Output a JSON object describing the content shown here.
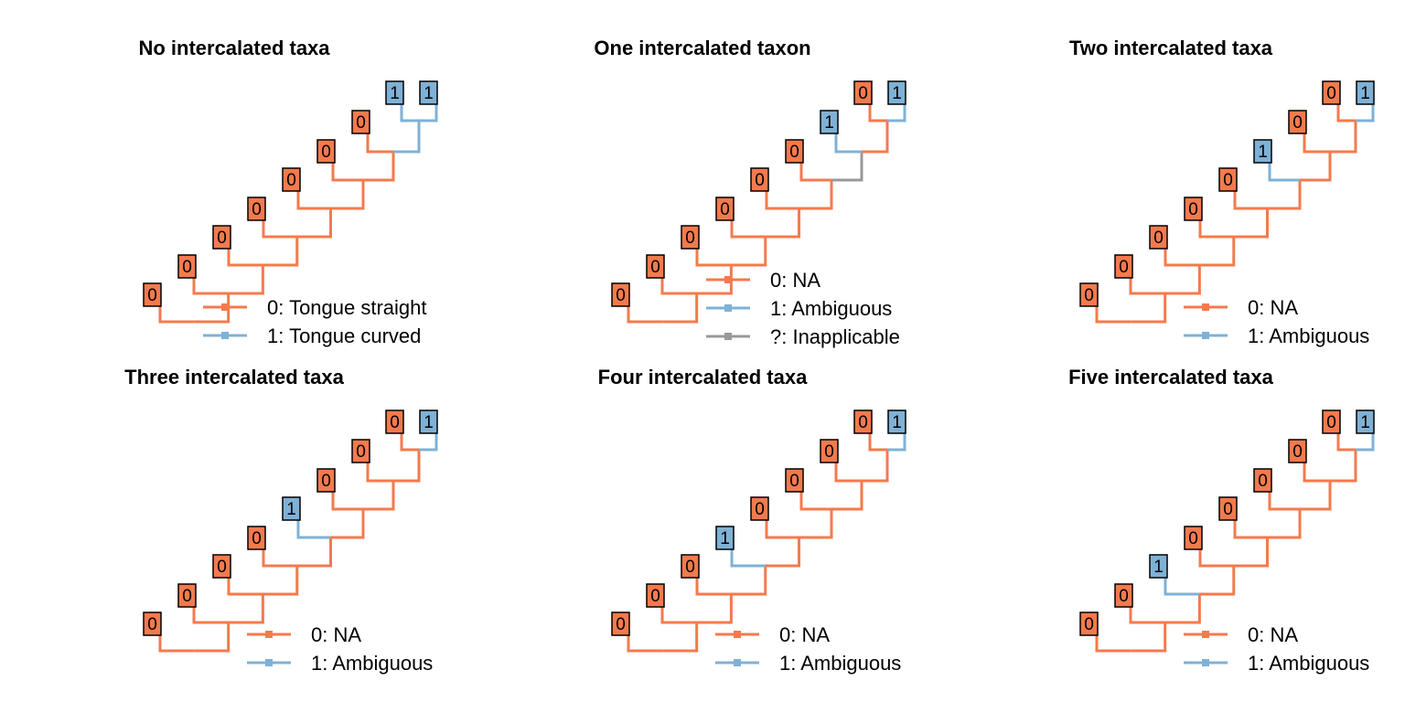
{
  "colors": {
    "state_0": "#F47A4D",
    "state_1": "#7FB1D6",
    "inapplicable": "#999999",
    "box_border": "#000000"
  },
  "panels": [
    {
      "title": "No intercalated taxa",
      "tips": [
        "0",
        "0",
        "0",
        "0",
        "0",
        "0",
        "0",
        "1",
        "1"
      ],
      "legend": [
        {
          "label": "0: Tongue straight",
          "color": "#F47A4D"
        },
        {
          "label": "1: Tongue curved",
          "color": "#7FB1D6"
        }
      ]
    },
    {
      "title": "One intercalated taxon",
      "tips": [
        "0",
        "0",
        "0",
        "0",
        "0",
        "0",
        "1",
        "0",
        "1"
      ],
      "legend": [
        {
          "label": "0: NA",
          "color": "#F47A4D"
        },
        {
          "label": "1: Ambiguous",
          "color": "#7FB1D6"
        },
        {
          "label": "?: Inapplicable",
          "color": "#999999"
        }
      ]
    },
    {
      "title": "Two intercalated taxa",
      "tips": [
        "0",
        "0",
        "0",
        "0",
        "0",
        "1",
        "0",
        "0",
        "1"
      ],
      "legend": [
        {
          "label": "0: NA",
          "color": "#F47A4D"
        },
        {
          "label": "1: Ambiguous",
          "color": "#7FB1D6"
        }
      ]
    },
    {
      "title": "Three intercalated taxa",
      "tips": [
        "0",
        "0",
        "0",
        "0",
        "1",
        "0",
        "0",
        "0",
        "1"
      ],
      "legend": [
        {
          "label": "0: NA",
          "color": "#F47A4D"
        },
        {
          "label": "1: Ambiguous",
          "color": "#7FB1D6"
        }
      ]
    },
    {
      "title": "Four intercalated taxa",
      "tips": [
        "0",
        "0",
        "0",
        "1",
        "0",
        "0",
        "0",
        "0",
        "1"
      ],
      "legend": [
        {
          "label": "0: NA",
          "color": "#F47A4D"
        },
        {
          "label": "1: Ambiguous",
          "color": "#7FB1D6"
        }
      ]
    },
    {
      "title": "Five intercalated taxa",
      "tips": [
        "0",
        "0",
        "1",
        "0",
        "0",
        "0",
        "0",
        "0",
        "1"
      ],
      "legend": [
        {
          "label": "0: NA",
          "color": "#F47A4D"
        },
        {
          "label": "1: Ambiguous",
          "color": "#7FB1D6"
        }
      ]
    }
  ]
}
